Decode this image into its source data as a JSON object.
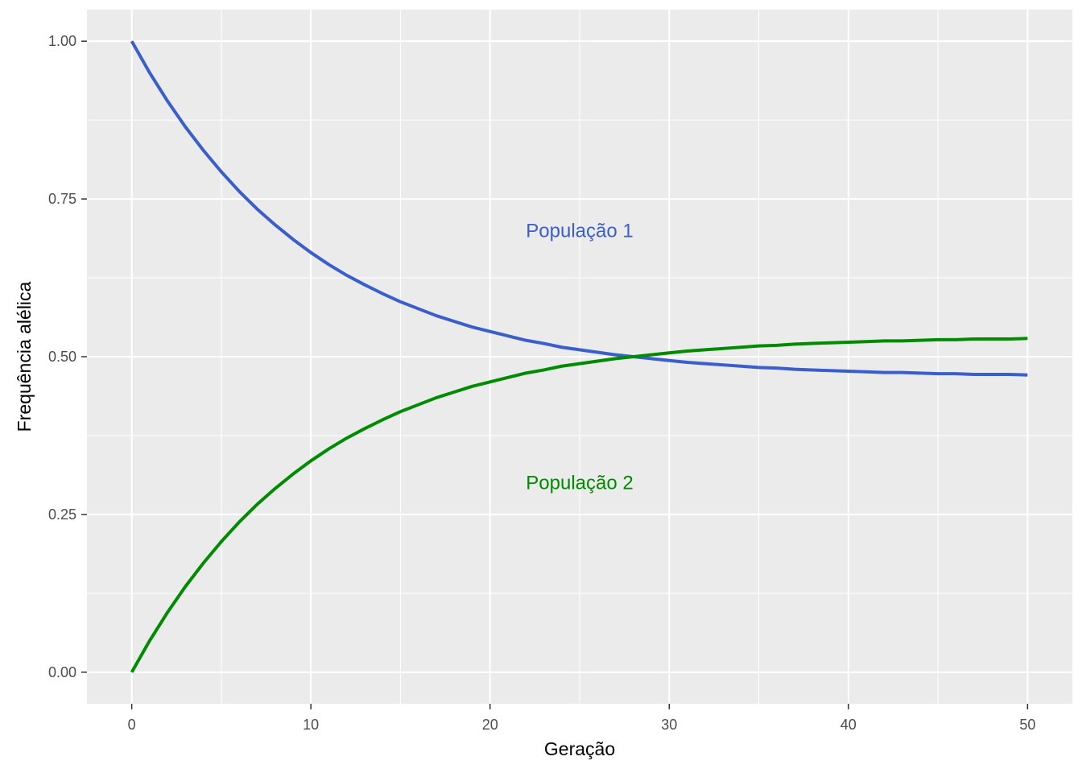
{
  "chart_data": {
    "type": "line",
    "title": "",
    "xlabel": "Geração",
    "ylabel": "Frequência alélica",
    "xlim": [
      -2.5,
      52.5
    ],
    "ylim": [
      -0.05,
      1.05
    ],
    "x_ticks": [
      0,
      10,
      20,
      30,
      40,
      50
    ],
    "x_tick_labels": [
      "0",
      "10",
      "20",
      "30",
      "40",
      "50"
    ],
    "y_ticks": [
      0,
      0.25,
      0.5,
      0.75,
      1.0
    ],
    "y_tick_labels": [
      "0.00",
      "0.25",
      "0.50",
      "0.75",
      "1.00"
    ],
    "grid": true,
    "legend": "none",
    "background": "#ebebeb",
    "x": [
      0,
      1,
      2,
      3,
      4,
      5,
      6,
      7,
      8,
      9,
      10,
      11,
      12,
      13,
      14,
      15,
      16,
      17,
      18,
      19,
      20,
      21,
      22,
      23,
      24,
      25,
      26,
      27,
      28,
      29,
      30,
      31,
      32,
      33,
      34,
      35,
      36,
      37,
      38,
      39,
      40,
      41,
      42,
      43,
      44,
      45,
      46,
      47,
      48,
      49,
      50
    ],
    "series": [
      {
        "color": "#3a5fcd",
        "values": [
          1.0,
          0.95,
          0.905,
          0.864,
          0.827,
          0.793,
          0.762,
          0.734,
          0.709,
          0.686,
          0.665,
          0.646,
          0.629,
          0.614,
          0.6,
          0.587,
          0.576,
          0.565,
          0.556,
          0.547,
          0.54,
          0.533,
          0.526,
          0.521,
          0.515,
          0.511,
          0.507,
          0.503,
          0.5,
          0.497,
          0.494,
          0.491,
          0.489,
          0.487,
          0.485,
          0.483,
          0.482,
          0.48,
          0.479,
          0.478,
          0.477,
          0.476,
          0.475,
          0.475,
          0.474,
          0.473,
          0.473,
          0.472,
          0.472,
          0.472,
          0.471
        ]
      },
      {
        "color": "#008b00",
        "values": [
          0.0,
          0.05,
          0.095,
          0.136,
          0.173,
          0.207,
          0.238,
          0.266,
          0.291,
          0.314,
          0.335,
          0.354,
          0.371,
          0.386,
          0.4,
          0.413,
          0.424,
          0.435,
          0.444,
          0.453,
          0.46,
          0.467,
          0.474,
          0.479,
          0.485,
          0.489,
          0.493,
          0.497,
          0.5,
          0.503,
          0.506,
          0.509,
          0.511,
          0.513,
          0.515,
          0.517,
          0.518,
          0.52,
          0.521,
          0.522,
          0.523,
          0.524,
          0.525,
          0.525,
          0.526,
          0.527,
          0.527,
          0.528,
          0.528,
          0.528,
          0.529
        ]
      }
    ],
    "annotations": [
      {
        "text": "População  1",
        "x": 25,
        "y": 0.7,
        "color": "#3a5fcd"
      },
      {
        "text": "População  2",
        "x": 25,
        "y": 0.3,
        "color": "#008b00"
      }
    ]
  }
}
